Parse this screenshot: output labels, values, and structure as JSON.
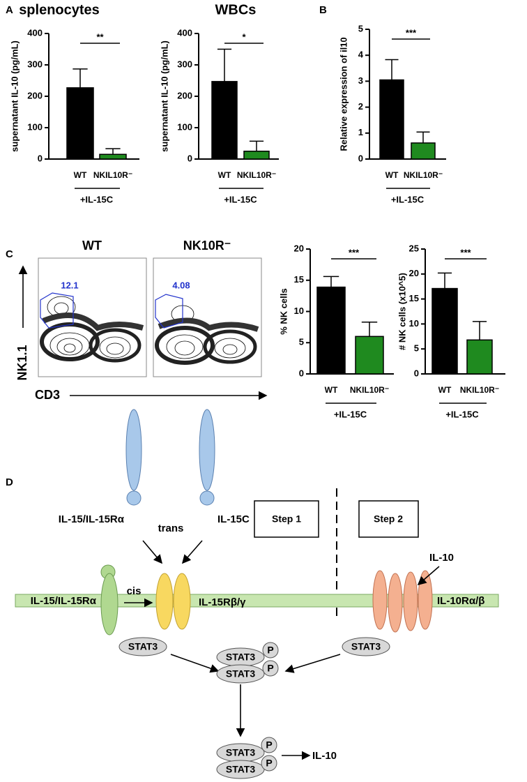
{
  "panel_letters": [
    "A",
    "B",
    "C",
    "D"
  ],
  "chart_data": [
    {
      "type": "bar",
      "title": "splenocytes",
      "y_label": "supernatant IL-10 (pg/mL)",
      "categories": [
        "WT",
        "NKIL10R⁻"
      ],
      "values": [
        227,
        15
      ],
      "errors": [
        60,
        18
      ],
      "colors": [
        "#000000",
        "#1f8a1f"
      ],
      "ylim": [
        0,
        400
      ],
      "yticks": [
        0,
        100,
        200,
        300,
        400
      ],
      "significance": "**",
      "group_label": "+IL-15C"
    },
    {
      "type": "bar",
      "title": "WBCs",
      "y_label": "supernatant IL-10 (pg/mL)",
      "categories": [
        "WT",
        "NKIL10R⁻"
      ],
      "values": [
        247,
        25
      ],
      "errors": [
        103,
        32
      ],
      "colors": [
        "#000000",
        "#1f8a1f"
      ],
      "ylim": [
        0,
        400
      ],
      "yticks": [
        0,
        100,
        200,
        300,
        400
      ],
      "significance": "*",
      "group_label": "+IL-15C"
    },
    {
      "type": "bar",
      "y_label": "Relative expression of il10",
      "categories": [
        "WT",
        "NKIL10R⁻"
      ],
      "values": [
        3.05,
        0.62
      ],
      "errors": [
        0.78,
        0.42
      ],
      "colors": [
        "#000000",
        "#1f8a1f"
      ],
      "ylim": [
        0,
        5
      ],
      "yticks": [
        0,
        1,
        2,
        3,
        4,
        5
      ],
      "significance": "***",
      "group_label": "+IL-15C"
    },
    {
      "type": "bar",
      "y_label": "% NK cells",
      "categories": [
        "WT",
        "NKIL10R⁻"
      ],
      "values": [
        13.9,
        6.0
      ],
      "errors": [
        1.7,
        2.3
      ],
      "colors": [
        "#000000",
        "#1f8a1f"
      ],
      "ylim": [
        0,
        20
      ],
      "yticks": [
        0,
        5,
        10,
        15,
        20
      ],
      "significance": "***",
      "group_label": "+IL-15C"
    },
    {
      "type": "bar",
      "y_label": "# NK cells (x10^5)",
      "categories": [
        "WT",
        "NKIL10R⁻"
      ],
      "values": [
        17.1,
        6.8
      ],
      "errors": [
        3.1,
        3.7
      ],
      "colors": [
        "#000000",
        "#1f8a1f"
      ],
      "ylim": [
        0,
        25
      ],
      "yticks": [
        0,
        5,
        10,
        15,
        20,
        25
      ],
      "significance": "***",
      "group_label": "+IL-15C"
    }
  ],
  "flow": {
    "y_label": "NK1.1",
    "x_label": "CD3",
    "plots": [
      {
        "title": "WT",
        "gate": "12.1"
      },
      {
        "title": "NK10R⁻",
        "gate": "4.08"
      }
    ]
  },
  "diagram": {
    "step1": "Step 1",
    "step2": "Step 2",
    "trans_ligand": "IL-15/IL-15Rα",
    "complex": "IL-15C",
    "trans": "trans",
    "cis_ligand": "IL-15/IL-15Rα",
    "cis": "cis",
    "il15r": "IL-15Rβ/γ",
    "il10": "IL-10",
    "il10r": "IL-10Rα/β",
    "stat3": [
      "STAT3",
      "STAT3",
      "STAT3",
      "STAT3",
      "STAT3",
      "STAT3"
    ],
    "p": [
      "P",
      "P",
      "P",
      "P"
    ],
    "output": "IL-10"
  }
}
